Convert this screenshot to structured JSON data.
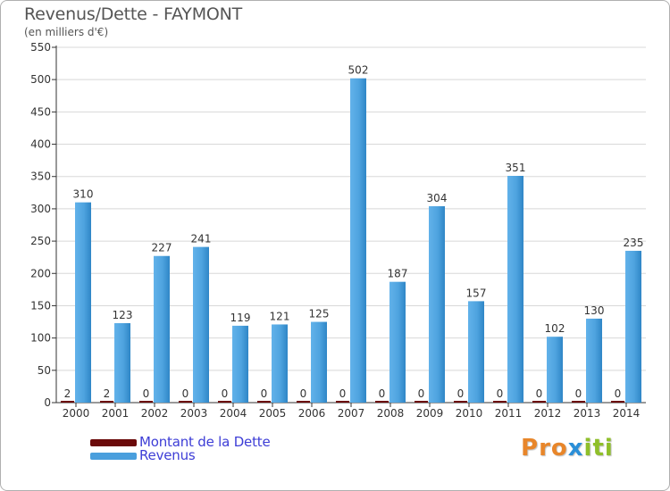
{
  "title": "Revenus/Dette - FAYMONT",
  "subtitle": "(en milliers d'€)",
  "logo_letters": [
    "P",
    "r",
    "o",
    "x",
    "i",
    "t",
    "i"
  ],
  "logo_colors": [
    "#e8862a",
    "#e8862a",
    "#e8862a",
    "#2a8fd8",
    "#8fbf2a",
    "#8fbf2a",
    "#8fbf2a"
  ],
  "colors": {
    "dette": "#6b0a0a",
    "revenus": "#4a9fdd",
    "revenus_light": "#5dade6",
    "revenus_dark": "#2f86c6",
    "grid": "#d8d8d8",
    "legend_text": "#3d3dd6"
  },
  "chart_data": {
    "type": "bar",
    "title": "Revenus/Dette - FAYMONT",
    "subtitle": "(en milliers d'€)",
    "categories": [
      "2000",
      "2001",
      "2002",
      "2003",
      "2004",
      "2005",
      "2006",
      "2007",
      "2008",
      "2009",
      "2010",
      "2011",
      "2012",
      "2013",
      "2014"
    ],
    "series": [
      {
        "name": "Montant de la Dette",
        "values": [
          2,
          2,
          0,
          0,
          0,
          0,
          0,
          0,
          0,
          0,
          0,
          0,
          0,
          0,
          0
        ]
      },
      {
        "name": "Revenus",
        "values": [
          310,
          123,
          227,
          241,
          119,
          121,
          125,
          502,
          187,
          304,
          157,
          351,
          102,
          130,
          235
        ]
      }
    ],
    "yticks": [
      0,
      50,
      100,
      150,
      200,
      250,
      300,
      350,
      400,
      450,
      500,
      550
    ],
    "ylim": [
      0,
      550
    ],
    "grid": true,
    "legend_position": "bottom-left"
  }
}
